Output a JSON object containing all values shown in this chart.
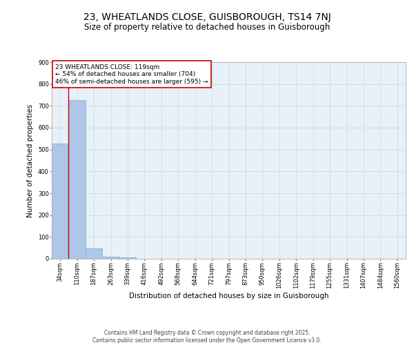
{
  "title1": "23, WHEATLANDS CLOSE, GUISBOROUGH, TS14 7NJ",
  "title2": "Size of property relative to detached houses in Guisborough",
  "xlabel": "Distribution of detached houses by size in Guisborough",
  "ylabel": "Number of detached properties",
  "categories": [
    "34sqm",
    "110sqm",
    "187sqm",
    "263sqm",
    "339sqm",
    "416sqm",
    "492sqm",
    "568sqm",
    "644sqm",
    "721sqm",
    "797sqm",
    "873sqm",
    "950sqm",
    "1026sqm",
    "1102sqm",
    "1179sqm",
    "1255sqm",
    "1331sqm",
    "1407sqm",
    "1484sqm",
    "1560sqm"
  ],
  "values": [
    527,
    727,
    48,
    10,
    7,
    0,
    0,
    0,
    0,
    0,
    0,
    0,
    0,
    0,
    0,
    0,
    0,
    0,
    0,
    0,
    0
  ],
  "bar_color": "#aec6e8",
  "bar_edge_color": "#7aabdb",
  "annotation_box_text": "23 WHEATLANDS CLOSE: 119sqm\n← 54% of detached houses are smaller (704)\n46% of semi-detached houses are larger (595) →",
  "annotation_box_color": "#ffffff",
  "annotation_box_edge_color": "#cc0000",
  "vline_x": 1,
  "vline_color": "#cc0000",
  "grid_color": "#c8d8e8",
  "background_color": "#e8f0f8",
  "ylim": [
    0,
    900
  ],
  "yticks": [
    0,
    100,
    200,
    300,
    400,
    500,
    600,
    700,
    800,
    900
  ],
  "footer": "Contains HM Land Registry data © Crown copyright and database right 2025.\nContains public sector information licensed under the Open Government Licence v3.0.",
  "title_fontsize": 10,
  "subtitle_fontsize": 8.5,
  "tick_fontsize": 6,
  "label_fontsize": 7.5,
  "annotation_fontsize": 6.5,
  "footer_fontsize": 5.5
}
